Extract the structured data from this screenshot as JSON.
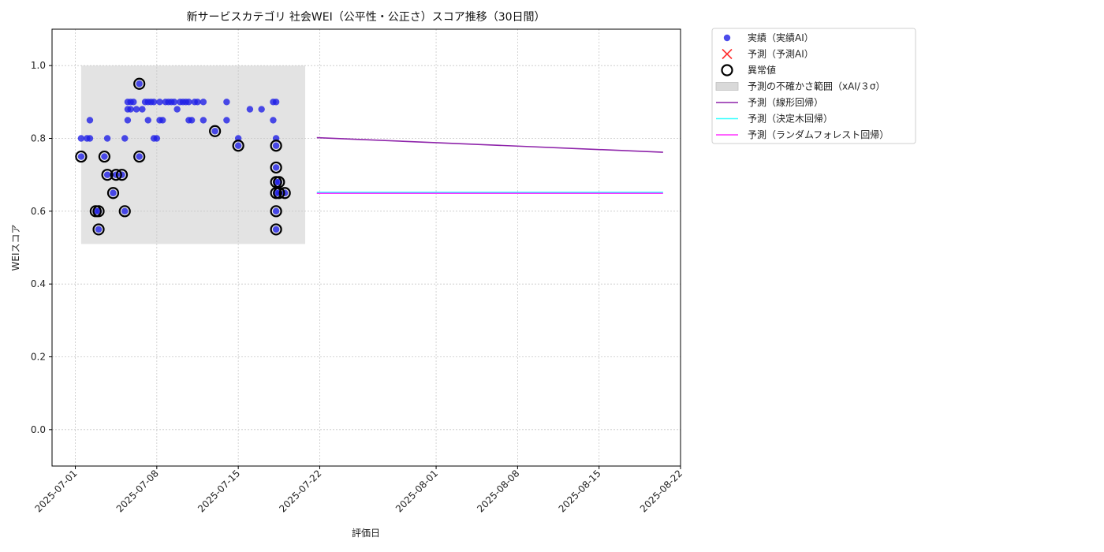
{
  "chart_data": {
    "type": "scatter",
    "title": "新サービスカテゴリ 社会WEI（公平性・公正さ）スコア推移（30日間）",
    "xlabel": "評価日",
    "ylabel": "WEIスコア",
    "xlim": [
      "2025-06-29",
      "2025-08-22"
    ],
    "ylim": [
      -0.1,
      1.1
    ],
    "x_ticks": [
      "2025-07-01",
      "2025-07-08",
      "2025-07-15",
      "2025-07-22",
      "2025-08-01",
      "2025-08-08",
      "2025-08-15",
      "2025-08-22"
    ],
    "y_ticks": [
      "0.0",
      "0.2",
      "0.4",
      "0.6",
      "0.8",
      "1.0"
    ],
    "grid": true,
    "legend_position": "outside-top-right",
    "legend": [
      {
        "label": "実績（実績AI）",
        "kind": "dot",
        "color": "#1f1fe6"
      },
      {
        "label": "予測（予測AI）",
        "kind": "x",
        "color": "#ff3030"
      },
      {
        "label": "異常値",
        "kind": "ring",
        "color": "#000000"
      },
      {
        "label": "予測の不確かさ範囲（xAI/３σ）",
        "kind": "band",
        "color": "#d9d9d9"
      },
      {
        "label": "予測（線形回帰）",
        "kind": "line",
        "color": "#8e24aa"
      },
      {
        "label": "予測（決定木回帰）",
        "kind": "line",
        "color": "#33ffff"
      },
      {
        "label": "予測（ランダムフォレスト回帰）",
        "kind": "line",
        "color": "#ff33ff"
      }
    ],
    "uncertainty_band": {
      "x_start": "2025-07-01 12:00",
      "x_end": "2025-07-20 18:00",
      "y_low": 0.51,
      "y_high": 1.0,
      "color": "#d9d9d9"
    },
    "series": [
      {
        "name": "実績（実績AI）",
        "color": "#1f1fe6",
        "points": [
          [
            "2025-07-01 12:00",
            0.75
          ],
          [
            "2025-07-01 12:00",
            0.8
          ],
          [
            "2025-07-02 00:00",
            0.8
          ],
          [
            "2025-07-02 06:00",
            0.8
          ],
          [
            "2025-07-02 06:00",
            0.85
          ],
          [
            "2025-07-02 18:00",
            0.6
          ],
          [
            "2025-07-03 00:00",
            0.6
          ],
          [
            "2025-07-03 00:00",
            0.55
          ],
          [
            "2025-07-03 12:00",
            0.75
          ],
          [
            "2025-07-03 18:00",
            0.8
          ],
          [
            "2025-07-03 18:00",
            0.7
          ],
          [
            "2025-07-04 06:00",
            0.65
          ],
          [
            "2025-07-04 12:00",
            0.7
          ],
          [
            "2025-07-05 00:00",
            0.7
          ],
          [
            "2025-07-05 06:00",
            0.6
          ],
          [
            "2025-07-05 06:00",
            0.8
          ],
          [
            "2025-07-05 12:00",
            0.85
          ],
          [
            "2025-07-05 12:00",
            0.88
          ],
          [
            "2025-07-05 12:00",
            0.9
          ],
          [
            "2025-07-05 18:00",
            0.88
          ],
          [
            "2025-07-05 18:00",
            0.9
          ],
          [
            "2025-07-06 00:00",
            0.9
          ],
          [
            "2025-07-06 06:00",
            0.88
          ],
          [
            "2025-07-06 12:00",
            0.95
          ],
          [
            "2025-07-06 12:00",
            0.75
          ],
          [
            "2025-07-06 18:00",
            0.88
          ],
          [
            "2025-07-07 00:00",
            0.9
          ],
          [
            "2025-07-07 06:00",
            0.85
          ],
          [
            "2025-07-07 06:00",
            0.9
          ],
          [
            "2025-07-07 12:00",
            0.9
          ],
          [
            "2025-07-07 18:00",
            0.9
          ],
          [
            "2025-07-07 18:00",
            0.8
          ],
          [
            "2025-07-08 00:00",
            0.8
          ],
          [
            "2025-07-08 06:00",
            0.85
          ],
          [
            "2025-07-08 06:00",
            0.9
          ],
          [
            "2025-07-08 12:00",
            0.85
          ],
          [
            "2025-07-08 18:00",
            0.9
          ],
          [
            "2025-07-09 00:00",
            0.9
          ],
          [
            "2025-07-09 06:00",
            0.9
          ],
          [
            "2025-07-09 12:00",
            0.9
          ],
          [
            "2025-07-09 18:00",
            0.88
          ],
          [
            "2025-07-10 00:00",
            0.9
          ],
          [
            "2025-07-10 06:00",
            0.9
          ],
          [
            "2025-07-10 12:00",
            0.9
          ],
          [
            "2025-07-10 18:00",
            0.85
          ],
          [
            "2025-07-10 18:00",
            0.9
          ],
          [
            "2025-07-11 00:00",
            0.85
          ],
          [
            "2025-07-11 06:00",
            0.9
          ],
          [
            "2025-07-11 12:00",
            0.9
          ],
          [
            "2025-07-12 00:00",
            0.85
          ],
          [
            "2025-07-12 00:00",
            0.9
          ],
          [
            "2025-07-13 00:00",
            0.82
          ],
          [
            "2025-07-14 00:00",
            0.85
          ],
          [
            "2025-07-14 00:00",
            0.9
          ],
          [
            "2025-07-15 00:00",
            0.78
          ],
          [
            "2025-07-15 00:00",
            0.8
          ],
          [
            "2025-07-16 00:00",
            0.88
          ],
          [
            "2025-07-17 00:00",
            0.88
          ],
          [
            "2025-07-18 00:00",
            0.85
          ],
          [
            "2025-07-18 00:00",
            0.9
          ],
          [
            "2025-07-18 06:00",
            0.9
          ],
          [
            "2025-07-18 06:00",
            0.8
          ],
          [
            "2025-07-18 06:00",
            0.78
          ],
          [
            "2025-07-18 06:00",
            0.72
          ],
          [
            "2025-07-18 06:00",
            0.68
          ],
          [
            "2025-07-18 06:00",
            0.65
          ],
          [
            "2025-07-18 06:00",
            0.6
          ],
          [
            "2025-07-18 06:00",
            0.55
          ],
          [
            "2025-07-18 12:00",
            0.65
          ],
          [
            "2025-07-18 12:00",
            0.68
          ],
          [
            "2025-07-19 00:00",
            0.65
          ]
        ]
      },
      {
        "name": "異常値",
        "color": "#000000",
        "points": [
          [
            "2025-07-01 12:00",
            0.75
          ],
          [
            "2025-07-02 18:00",
            0.6
          ],
          [
            "2025-07-03 00:00",
            0.6
          ],
          [
            "2025-07-03 00:00",
            0.55
          ],
          [
            "2025-07-03 12:00",
            0.75
          ],
          [
            "2025-07-03 18:00",
            0.7
          ],
          [
            "2025-07-04 06:00",
            0.65
          ],
          [
            "2025-07-04 12:00",
            0.7
          ],
          [
            "2025-07-05 00:00",
            0.7
          ],
          [
            "2025-07-05 06:00",
            0.6
          ],
          [
            "2025-07-06 12:00",
            0.95
          ],
          [
            "2025-07-06 12:00",
            0.75
          ],
          [
            "2025-07-13 00:00",
            0.82
          ],
          [
            "2025-07-15 00:00",
            0.78
          ],
          [
            "2025-07-18 06:00",
            0.78
          ],
          [
            "2025-07-18 06:00",
            0.72
          ],
          [
            "2025-07-18 06:00",
            0.68
          ],
          [
            "2025-07-18 06:00",
            0.65
          ],
          [
            "2025-07-18 06:00",
            0.6
          ],
          [
            "2025-07-18 06:00",
            0.55
          ],
          [
            "2025-07-18 12:00",
            0.65
          ],
          [
            "2025-07-18 12:00",
            0.68
          ],
          [
            "2025-07-19 00:00",
            0.65
          ]
        ]
      },
      {
        "name": "予測（線形回帰）",
        "color": "#8e24aa",
        "points": [
          [
            "2025-07-21 18:00",
            0.802
          ],
          [
            "2025-08-20 12:00",
            0.762
          ]
        ]
      },
      {
        "name": "予測（決定木回帰）",
        "color": "#33ffff",
        "points": [
          [
            "2025-07-21 18:00",
            0.652
          ],
          [
            "2025-08-20 12:00",
            0.652
          ]
        ]
      },
      {
        "name": "予測（ランダムフォレスト回帰）",
        "color": "#ff33ff",
        "points": [
          [
            "2025-07-21 18:00",
            0.649
          ],
          [
            "2025-08-20 12:00",
            0.649
          ]
        ]
      }
    ]
  }
}
